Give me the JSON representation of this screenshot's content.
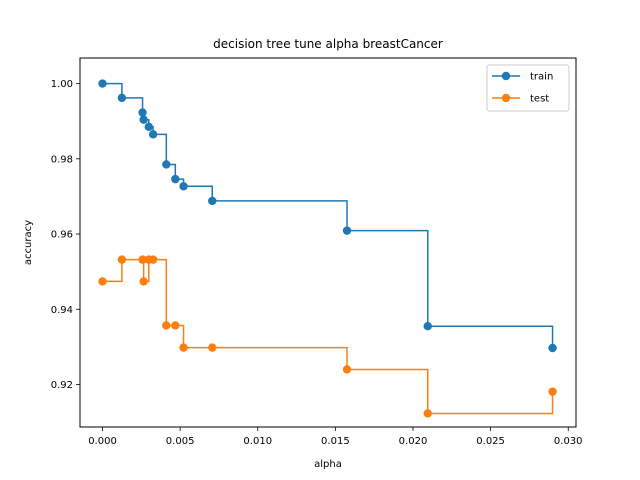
{
  "chart_data": {
    "type": "line",
    "drawstyle": "steps-post",
    "marker": "circle",
    "title": "decision tree tune alpha breastCancer",
    "xlabel": "alpha",
    "ylabel": "accuracy",
    "xlim": [
      -0.00145,
      0.0305
    ],
    "ylim": [
      0.9087,
      1.0068
    ],
    "xticks": [
      0.0,
      0.005,
      0.01,
      0.015,
      0.02,
      0.025,
      0.03
    ],
    "xtick_labels": [
      "0.000",
      "0.005",
      "0.010",
      "0.015",
      "0.020",
      "0.025",
      "0.030"
    ],
    "yticks": [
      0.92,
      0.94,
      0.96,
      0.98,
      1.0
    ],
    "ytick_labels": [
      "0.92",
      "0.94",
      "0.96",
      "0.98",
      "1.00"
    ],
    "grid": false,
    "legend_position": "top-right",
    "x": [
      0.0,
      0.00125,
      0.00258,
      0.00265,
      0.00298,
      0.00326,
      0.00411,
      0.00469,
      0.00522,
      0.00707,
      0.01575,
      0.02095,
      0.02899
    ],
    "series": [
      {
        "name": "train",
        "color": "#1f77b4",
        "values": [
          1.0,
          0.9962,
          0.9923,
          0.9904,
          0.9885,
          0.9865,
          0.9785,
          0.9746,
          0.9727,
          0.9688,
          0.9609,
          0.9355,
          0.9297
        ]
      },
      {
        "name": "test",
        "color": "#ff7f0e",
        "values": [
          0.9474,
          0.9532,
          0.9532,
          0.9474,
          0.9532,
          0.9532,
          0.9357,
          0.9357,
          0.9298,
          0.9298,
          0.924,
          0.9123,
          0.9181
        ]
      }
    ]
  }
}
